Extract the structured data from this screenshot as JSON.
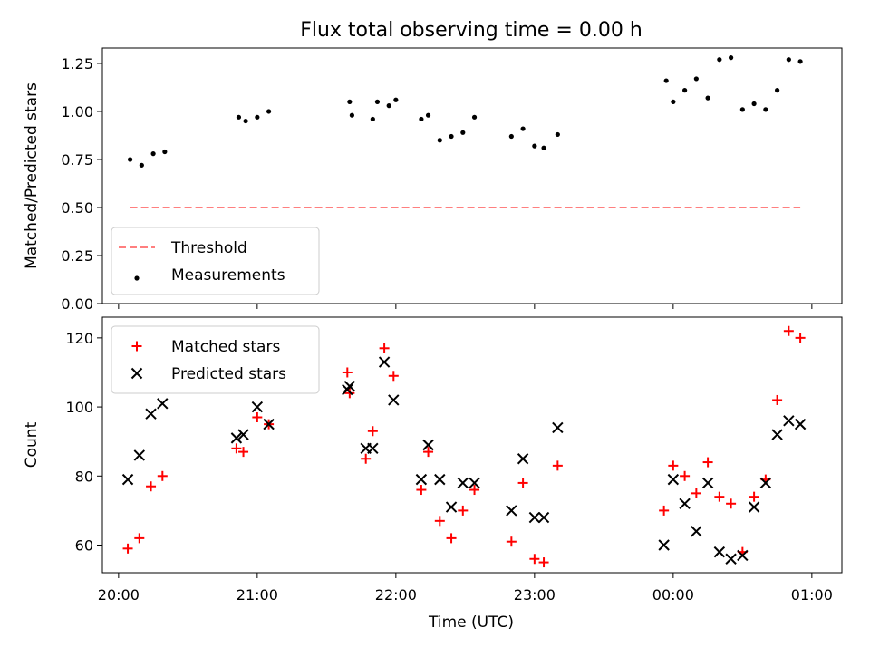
{
  "chart_data": {
    "type": "scatter",
    "title": "Flux total observing time = 0.00 h",
    "xlabel": "Time (UTC)",
    "x_ticks": [
      "20:00",
      "21:00",
      "22:00",
      "23:00",
      "00:00",
      "01:00"
    ],
    "xlim": [
      "19:53",
      "01:13"
    ],
    "panels": [
      {
        "ylabel": "Matched/Predicted stars",
        "ylim": [
          0,
          1.33
        ],
        "y_ticks": [
          "0.00",
          "0.25",
          "0.50",
          "0.75",
          "1.00",
          "1.25"
        ],
        "legend": {
          "placement": "lower-left"
        },
        "series": [
          {
            "name": "Threshold",
            "type": "line",
            "style": "dashed",
            "color": "#ff7f7f",
            "x": [
              "20:05",
              "00:55"
            ],
            "y": [
              0.5,
              0.5
            ]
          },
          {
            "name": "Measurements",
            "type": "scatter",
            "marker": "dot",
            "color": "#000000",
            "x": [
              "20:05",
              "20:10",
              "20:15",
              "20:20",
              "20:52",
              "20:55",
              "21:00",
              "21:05",
              "21:40",
              "21:41",
              "21:50",
              "21:52",
              "21:57",
              "22:00",
              "22:11",
              "22:14",
              "22:19",
              "22:24",
              "22:29",
              "22:34",
              "22:50",
              "22:55",
              "23:00",
              "23:04",
              "23:10",
              "23:57",
              "00:00",
              "00:05",
              "00:10",
              "00:15",
              "00:20",
              "00:25",
              "00:30",
              "00:35",
              "00:40",
              "00:45",
              "00:50",
              "00:55"
            ],
            "y": [
              0.75,
              0.72,
              0.78,
              0.79,
              0.97,
              0.95,
              0.97,
              1.0,
              1.05,
              0.98,
              0.96,
              1.05,
              1.03,
              1.06,
              0.96,
              0.98,
              0.85,
              0.87,
              0.89,
              0.97,
              0.87,
              0.91,
              0.82,
              0.81,
              0.88,
              1.16,
              1.05,
              1.11,
              1.17,
              1.07,
              1.27,
              1.28,
              1.01,
              1.04,
              1.01,
              1.11,
              1.27,
              1.26
            ]
          }
        ]
      },
      {
        "ylabel": "Count",
        "ylim": [
          52,
          126
        ],
        "y_ticks": [
          "60",
          "80",
          "100",
          "120"
        ],
        "legend": {
          "placement": "upper-left"
        },
        "series": [
          {
            "name": "Matched stars",
            "type": "scatter",
            "marker": "plus",
            "color": "#ff0000",
            "x": [
              "20:04",
              "20:09",
              "20:14",
              "20:19",
              "20:51",
              "20:54",
              "21:00",
              "21:05",
              "21:39",
              "21:40",
              "21:47",
              "21:50",
              "21:55",
              "21:59",
              "22:11",
              "22:14",
              "22:19",
              "22:24",
              "22:29",
              "22:34",
              "22:50",
              "22:55",
              "23:00",
              "23:04",
              "23:10",
              "23:56",
              "00:00",
              "00:05",
              "00:10",
              "00:15",
              "00:20",
              "00:25",
              "00:30",
              "00:35",
              "00:40",
              "00:45",
              "00:50",
              "00:55"
            ],
            "y": [
              59,
              62,
              77,
              80,
              88,
              87,
              97,
              95,
              110,
              104,
              85,
              93,
              117,
              109,
              76,
              87,
              67,
              62,
              70,
              76,
              61,
              78,
              56,
              55,
              83,
              70,
              83,
              80,
              75,
              84,
              74,
              72,
              58,
              74,
              79,
              102,
              122,
              120
            ]
          },
          {
            "name": "Predicted stars",
            "type": "scatter",
            "marker": "x",
            "color": "#000000",
            "x": [
              "20:04",
              "20:09",
              "20:14",
              "20:19",
              "20:51",
              "20:54",
              "21:00",
              "21:05",
              "21:39",
              "21:40",
              "21:47",
              "21:50",
              "21:55",
              "21:59",
              "22:11",
              "22:14",
              "22:19",
              "22:24",
              "22:29",
              "22:34",
              "22:50",
              "22:55",
              "23:00",
              "23:04",
              "23:10",
              "23:56",
              "00:00",
              "00:05",
              "00:10",
              "00:15",
              "00:20",
              "00:25",
              "00:30",
              "00:35",
              "00:40",
              "00:45",
              "00:50",
              "00:55"
            ],
            "y": [
              79,
              86,
              98,
              101,
              91,
              92,
              100,
              95,
              105,
              106,
              88,
              88,
              113,
              102,
              79,
              89,
              79,
              71,
              78,
              78,
              70,
              85,
              68,
              68,
              94,
              60,
              79,
              72,
              64,
              78,
              58,
              56,
              57,
              71,
              78,
              92,
              96,
              95
            ]
          }
        ]
      }
    ]
  }
}
